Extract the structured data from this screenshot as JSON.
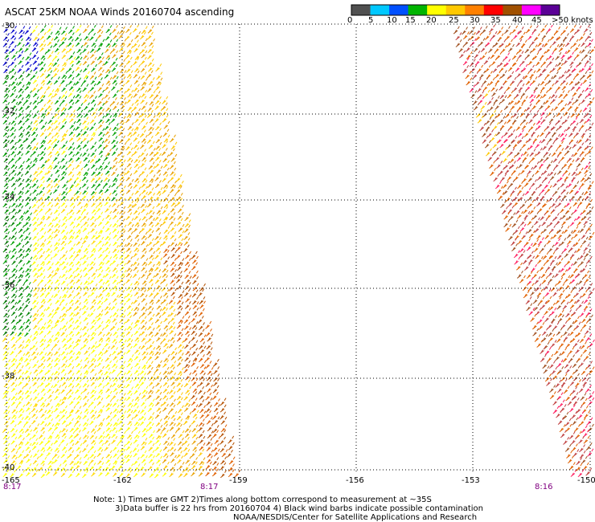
{
  "title": "ASCAT 25KM NOAA Winds 20160704 ascending",
  "colorbar": {
    "labels": [
      "0",
      "5",
      "10",
      "15",
      "20",
      "25",
      "30",
      "35",
      "40",
      "45",
      ">50 knots"
    ],
    "colors": [
      "#505050",
      "#00c8ff",
      "#0050ff",
      "#00b400",
      "#ffff00",
      "#ffc800",
      "#ff8000",
      "#ff0000",
      "#a05000",
      "#ff00ff",
      "#5a0096"
    ]
  },
  "y_labels": [
    "-30",
    "-32",
    "-34",
    "-36",
    "-38",
    "-40"
  ],
  "x_labels": [
    "-165",
    "-162",
    "-159",
    "-156",
    "-153",
    "-150"
  ],
  "time_labels": [
    "8:17",
    "8:17",
    "8:16"
  ],
  "notes": {
    "line1": "Note: 1) Times are GMT 2)Times along bottom correspond to measurement at ~35S",
    "line2": "3)Data buffer is 22 hrs from 20160704 4) Black wind barbs indicate possible contamination",
    "line3": "NOAA/NESDIS/Center for Satellite Applications and Research"
  }
}
